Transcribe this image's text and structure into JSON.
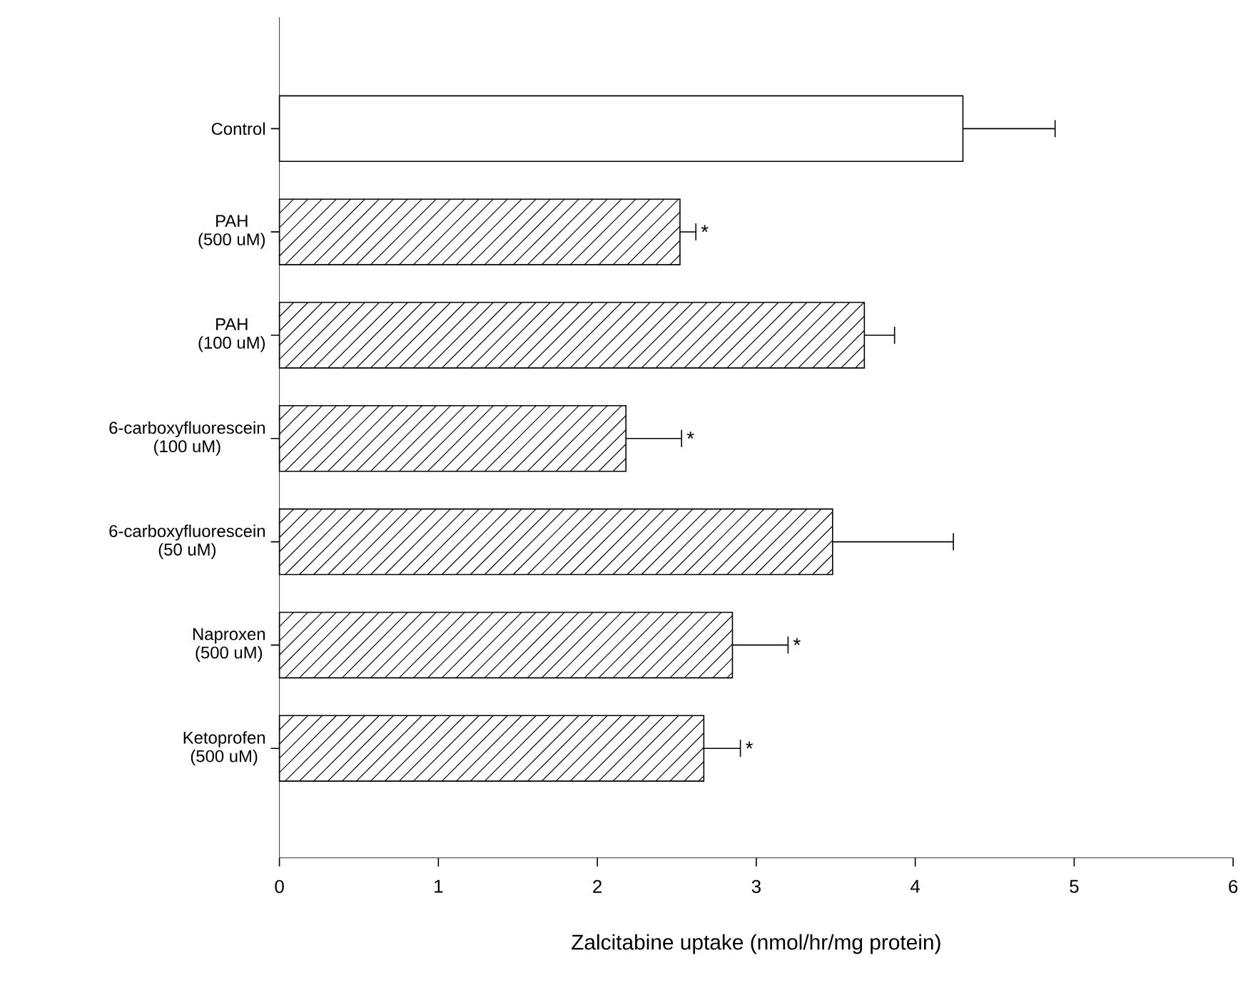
{
  "chart_data": {
    "type": "bar",
    "orientation": "horizontal",
    "xlabel": "Zalcitabine uptake (nmol/hr/mg protein)",
    "categories": [
      "Control",
      "PAH\n(500 uM)",
      "PAH\n(100 uM)",
      "6-carboxyfluorescein\n(100 uM)",
      "6-carboxyfluorescein\n(50 uM)",
      "Naproxen\n(500 uM)",
      "Ketoprofen\n(500 uM)"
    ],
    "values": [
      4.3,
      2.52,
      3.68,
      2.18,
      3.48,
      2.85,
      2.67
    ],
    "errors": [
      [
        4.3,
        4.88
      ],
      [
        2.52,
        2.62
      ],
      [
        3.68,
        3.87
      ],
      [
        2.18,
        2.53
      ],
      [
        3.48,
        4.24
      ],
      [
        2.85,
        3.2
      ],
      [
        2.67,
        2.9
      ]
    ],
    "value_labels": [
      null,
      "*",
      null,
      "*",
      null,
      "*",
      "*"
    ],
    "colors": [
      "#ffffff",
      "#000000",
      "#000000",
      "#000000",
      "#000000",
      "#000000",
      "#000000"
    ],
    "xlim": [
      0,
      6
    ],
    "xticks": [
      0,
      1,
      2,
      3,
      4,
      5,
      6
    ]
  }
}
